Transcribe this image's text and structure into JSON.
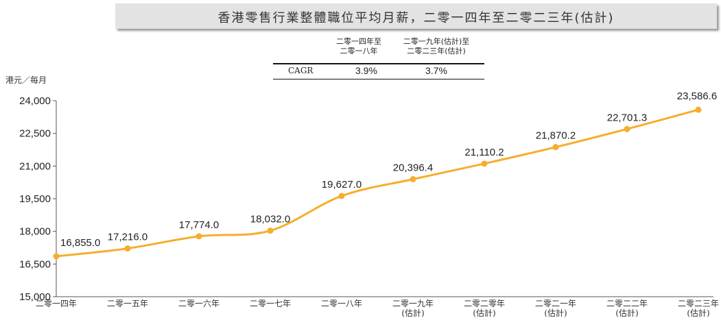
{
  "title": "香港零售行業整體職位平均月薪，二零一四年至二零二三年(估計)",
  "unit_label": "港元／每月",
  "cagr_table": {
    "col1_line1": "二零一四年至",
    "col1_line2": "二零一八年",
    "col2_line1": "二零一九年(估計)至",
    "col2_line2": "二零二三年(估計)",
    "row_label": "CAGR",
    "val1": "3.9%",
    "val2": "3.7%"
  },
  "colors": {
    "line": "#f6ad2c",
    "axis": "#555555"
  },
  "chart_data": {
    "type": "line",
    "x": [
      [
        "二零一四年"
      ],
      [
        "二零一五年"
      ],
      [
        "二零一六年"
      ],
      [
        "二零一七年"
      ],
      [
        "二零一八年"
      ],
      [
        "二零一九年",
        "(估計)"
      ],
      [
        "二零二零年",
        "(估計)"
      ],
      [
        "二零二一年",
        "(估計)"
      ],
      [
        "二零二二年",
        "(估計)"
      ],
      [
        "二零二三年",
        "(估計)"
      ]
    ],
    "values": [
      16855.0,
      17216.0,
      17774.0,
      18032.0,
      19627.0,
      20396.4,
      21110.2,
      21870.2,
      22701.3,
      23586.6
    ],
    "value_labels": [
      "16,855.0",
      "17,216.0",
      "17,774.0",
      "18,032.0",
      "19,627.0",
      "20,396.4",
      "21,110.2",
      "21,870.2",
      "22,701.3",
      "23,586.6"
    ],
    "yticks": [
      15000,
      16500,
      18000,
      19500,
      21000,
      22500,
      24000
    ],
    "ytick_labels": [
      "15,000",
      "16,500",
      "18,000",
      "19,500",
      "21,000",
      "22,500",
      "24,000"
    ],
    "ylim": [
      15000,
      24000
    ],
    "grid": false,
    "legend": "none"
  }
}
